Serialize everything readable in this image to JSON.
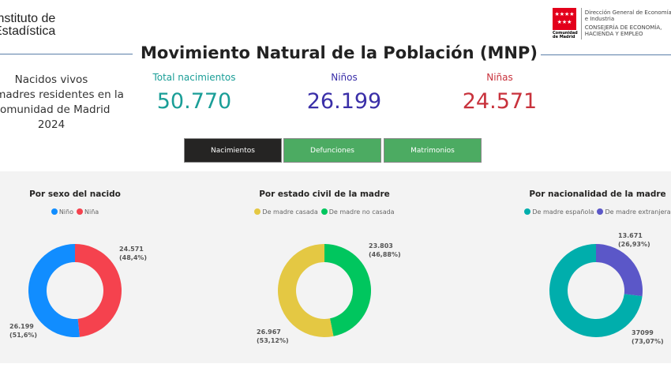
{
  "header": {
    "institute": [
      "Instituto de",
      "Estadística"
    ],
    "title": "Movimiento Natural de la Población (MNP)",
    "logo": {
      "name": "Comunidad de Madrid",
      "lines": [
        "Dirección General de Economía",
        "e Industria",
        "CONSEJERÍA DE ECONOMÍA,",
        "HACIENDA Y EMPLEO"
      ],
      "color": "#E3001B"
    }
  },
  "subtitle": [
    "Nacidos vivos",
    "de madres residentes en la",
    "Comunidad de Madrid",
    "2024"
  ],
  "kpis": [
    {
      "label": "Total nacimientos",
      "value": "50.770",
      "color": "#1A9E97"
    },
    {
      "label": "Niños",
      "value": "26.199",
      "color": "#3A2FA8"
    },
    {
      "label": "Niñas",
      "value": "24.571",
      "color": "#C8323C"
    }
  ],
  "tabs": [
    {
      "label": "Nacimientos",
      "active": true
    },
    {
      "label": "Defunciones",
      "active": false
    },
    {
      "label": "Matrimonios",
      "active": false
    }
  ],
  "chart_data": [
    {
      "type": "pie",
      "title": "Por sexo del nacido",
      "series": [
        {
          "name": "Niño",
          "value": 26199,
          "label": "26.199",
          "pct": "(51,6%)",
          "color": "#118DFF"
        },
        {
          "name": "Niña",
          "value": 24571,
          "label": "24.571",
          "pct": "(48,4%)",
          "color": "#F5424E"
        }
      ]
    },
    {
      "type": "pie",
      "title": "Por estado civil de la madre",
      "series": [
        {
          "name": "De madre casada",
          "value": 26967,
          "label": "26.967",
          "pct": "(53,12%)",
          "color": "#E4C843"
        },
        {
          "name": "De madre no casada",
          "value": 23803,
          "label": "23.803",
          "pct": "(46,88%)",
          "color": "#00C65E"
        }
      ]
    },
    {
      "type": "pie",
      "title": "Por nacionalidad de la madre",
      "series": [
        {
          "name": "De madre española",
          "value": 37099,
          "label": "37099",
          "pct": "(73,07%)",
          "color": "#00AEAC"
        },
        {
          "name": "De madre extranjera",
          "value": 13671,
          "label": "13.671",
          "pct": "(26,93%)",
          "color": "#5B57C8"
        }
      ]
    }
  ]
}
